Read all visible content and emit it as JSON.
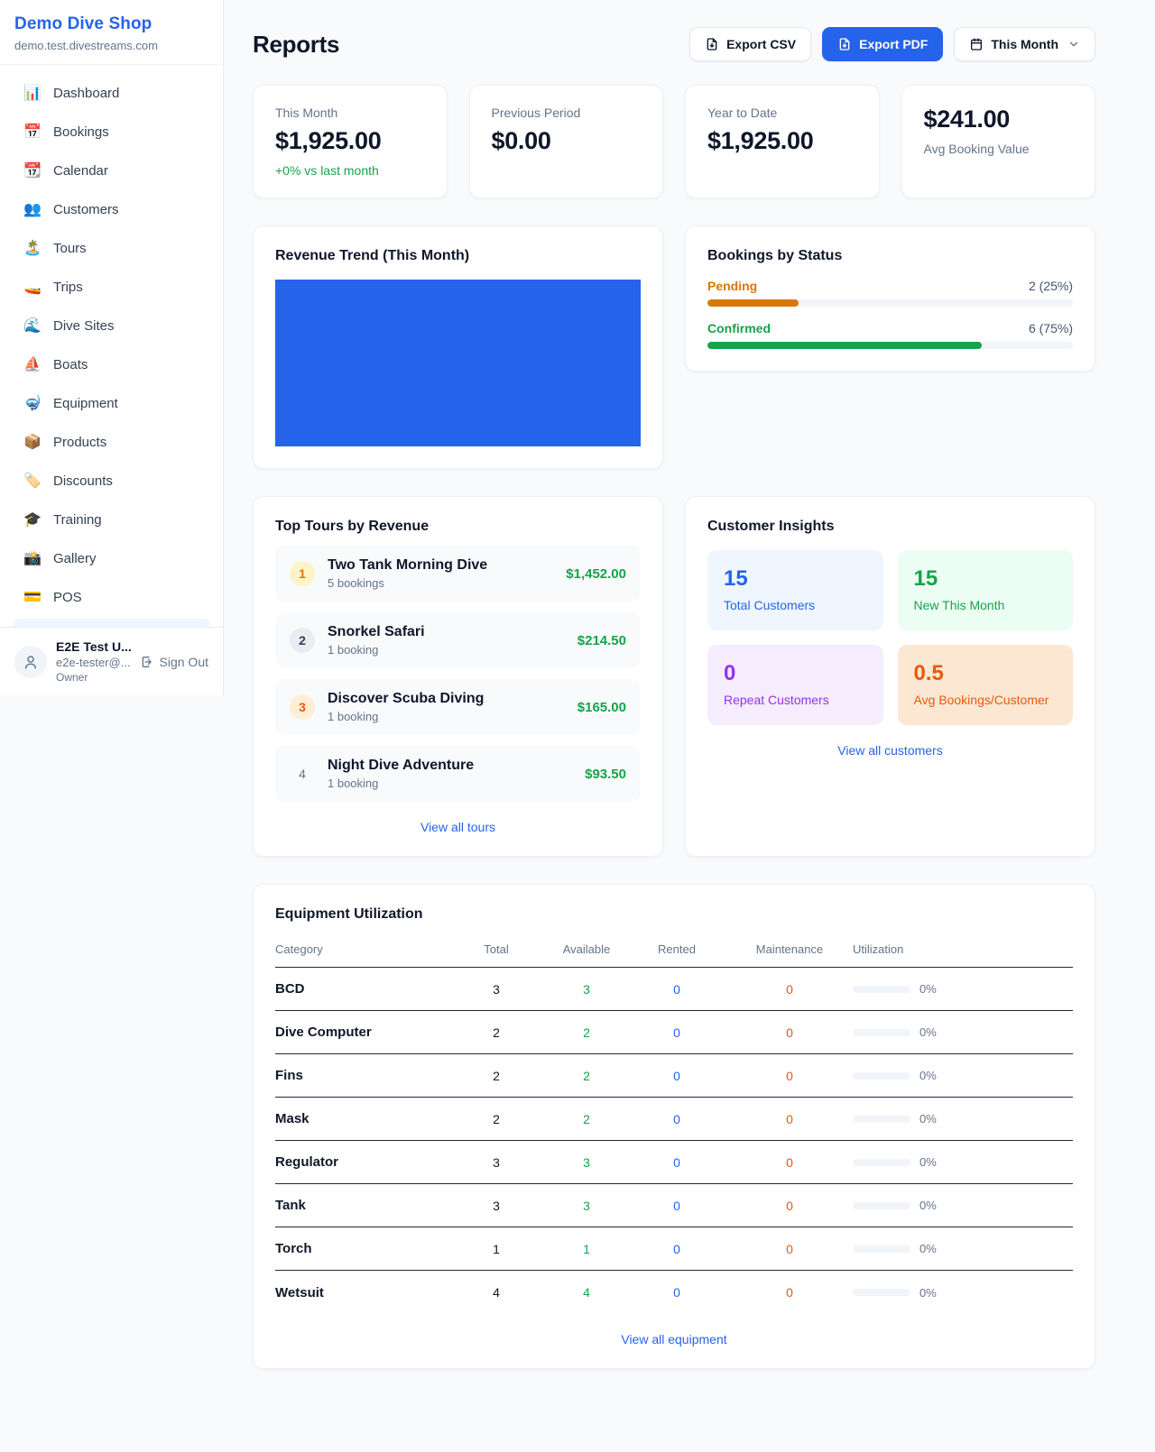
{
  "colors": {
    "accent": "#2563eb",
    "pending": "#d97706",
    "confirmed": "#16a34a",
    "maintenance": "#ea580c",
    "chart_fill": "#2563eb"
  },
  "brand": {
    "name": "Demo Dive Shop",
    "domain": "demo.test.divestreams.com"
  },
  "sidebar": {
    "items": [
      {
        "label": "Dashboard",
        "icon": "📊"
      },
      {
        "label": "Bookings",
        "icon": "📅"
      },
      {
        "label": "Calendar",
        "icon": "📆"
      },
      {
        "label": "Customers",
        "icon": "👥"
      },
      {
        "label": "Tours",
        "icon": "🏝️"
      },
      {
        "label": "Trips",
        "icon": "🚤"
      },
      {
        "label": "Dive Sites",
        "icon": "🌊"
      },
      {
        "label": "Boats",
        "icon": "⛵"
      },
      {
        "label": "Equipment",
        "icon": "🤿"
      },
      {
        "label": "Products",
        "icon": "📦"
      },
      {
        "label": "Discounts",
        "icon": "🏷️"
      },
      {
        "label": "Training",
        "icon": "🎓"
      },
      {
        "label": "Gallery",
        "icon": "📸"
      },
      {
        "label": "POS",
        "icon": "💳"
      }
    ]
  },
  "user": {
    "name": "E2E Test U...",
    "email": "e2e-tester@...",
    "role": "Owner",
    "sign_out": "Sign Out"
  },
  "header": {
    "title": "Reports",
    "export_csv": "Export CSV",
    "export_pdf": "Export PDF",
    "period": "This Month"
  },
  "stats": {
    "this_month": {
      "label": "This Month",
      "value": "$1,925.00",
      "delta": "+0% vs last month"
    },
    "previous_period": {
      "label": "Previous Period",
      "value": "$0.00"
    },
    "year_to_date": {
      "label": "Year to Date",
      "value": "$1,925.00"
    },
    "avg_booking": {
      "value": "$241.00",
      "label": "Avg Booking Value"
    }
  },
  "revenue_trend": {
    "title": "Revenue Trend (This Month)"
  },
  "bookings_by_status": {
    "title": "Bookings by Status",
    "rows": [
      {
        "label": "Pending",
        "count_text": "2 (25%)",
        "pct": 25
      },
      {
        "label": "Confirmed",
        "count_text": "6 (75%)",
        "pct": 75
      }
    ]
  },
  "top_tours": {
    "title": "Top Tours by Revenue",
    "items": [
      {
        "rank": "1",
        "name": "Two Tank Morning Dive",
        "bookings": "5 bookings",
        "revenue": "$1,452.00"
      },
      {
        "rank": "2",
        "name": "Snorkel Safari",
        "bookings": "1 booking",
        "revenue": "$214.50"
      },
      {
        "rank": "3",
        "name": "Discover Scuba Diving",
        "bookings": "1 booking",
        "revenue": "$165.00"
      },
      {
        "rank": "4",
        "name": "Night Dive Adventure",
        "bookings": "1 booking",
        "revenue": "$93.50"
      }
    ],
    "link": "View all tours"
  },
  "customer_insights": {
    "title": "Customer Insights",
    "tiles": [
      {
        "value": "15",
        "label": "Total Customers"
      },
      {
        "value": "15",
        "label": "New This Month"
      },
      {
        "value": "0",
        "label": "Repeat Customers"
      },
      {
        "value": "0.5",
        "label": "Avg Bookings/Customer"
      }
    ],
    "link": "View all customers"
  },
  "equipment": {
    "title": "Equipment Utilization",
    "columns": [
      "Category",
      "Total",
      "Available",
      "Rented",
      "Maintenance",
      "Utilization"
    ],
    "rows": [
      {
        "category": "BCD",
        "total": "3",
        "available": "3",
        "rented": "0",
        "maintenance": "0",
        "utilization": "0%",
        "pct": 0
      },
      {
        "category": "Dive Computer",
        "total": "2",
        "available": "2",
        "rented": "0",
        "maintenance": "0",
        "utilization": "0%",
        "pct": 0
      },
      {
        "category": "Fins",
        "total": "2",
        "available": "2",
        "rented": "0",
        "maintenance": "0",
        "utilization": "0%",
        "pct": 0
      },
      {
        "category": "Mask",
        "total": "2",
        "available": "2",
        "rented": "0",
        "maintenance": "0",
        "utilization": "0%",
        "pct": 0
      },
      {
        "category": "Regulator",
        "total": "3",
        "available": "3",
        "rented": "0",
        "maintenance": "0",
        "utilization": "0%",
        "pct": 0
      },
      {
        "category": "Tank",
        "total": "3",
        "available": "3",
        "rented": "0",
        "maintenance": "0",
        "utilization": "0%",
        "pct": 0
      },
      {
        "category": "Torch",
        "total": "1",
        "available": "1",
        "rented": "0",
        "maintenance": "0",
        "utilization": "0%",
        "pct": 0
      },
      {
        "category": "Wetsuit",
        "total": "4",
        "available": "4",
        "rented": "0",
        "maintenance": "0",
        "utilization": "0%",
        "pct": 0
      }
    ],
    "link": "View all equipment"
  }
}
